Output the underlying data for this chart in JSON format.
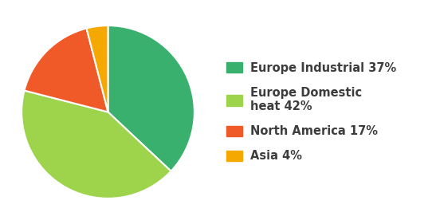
{
  "values": [
    37,
    42,
    17,
    4
  ],
  "colors": [
    "#3ab06e",
    "#9ed44c",
    "#f05a28",
    "#f5a800"
  ],
  "startangle": 90,
  "legend_labels": [
    "Europe Industrial 37%",
    "Europe Domestic\nheat 42%",
    "North America 17%",
    "Asia 4%"
  ],
  "figsize": [
    5.42,
    2.81
  ],
  "dpi": 100,
  "background_color": "#ffffff",
  "legend_fontsize": 10.5,
  "legend_fontweight": "bold",
  "legend_text_color": "#3d3d3d"
}
